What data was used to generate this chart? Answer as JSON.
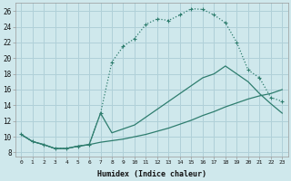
{
  "bg_color": "#cfe8ec",
  "grid_color": "#b0d0d8",
  "line_color": "#2e7d6e",
  "xlabel": "Humidex (Indice chaleur)",
  "xlim": [
    -0.5,
    23.5
  ],
  "ylim": [
    7.5,
    27.0
  ],
  "yticks": [
    8,
    10,
    12,
    14,
    16,
    18,
    20,
    22,
    24,
    26
  ],
  "xticks": [
    0,
    1,
    2,
    3,
    4,
    5,
    6,
    7,
    8,
    9,
    10,
    11,
    12,
    13,
    14,
    15,
    16,
    17,
    18,
    19,
    20,
    21,
    22,
    23
  ],
  "line1_x": [
    0,
    1,
    2,
    3,
    4,
    5,
    6,
    7,
    8,
    9,
    10,
    11,
    12,
    13,
    14,
    15,
    16,
    17,
    18,
    19,
    20,
    21,
    22,
    23
  ],
  "line1_y": [
    10.3,
    9.4,
    9.0,
    8.5,
    8.5,
    8.8,
    9.0,
    13.0,
    19.5,
    21.5,
    22.5,
    24.3,
    25.0,
    24.8,
    25.5,
    26.3,
    26.2,
    25.5,
    24.5,
    22.0,
    18.5,
    17.5,
    15.0,
    14.5
  ],
  "line2_x": [
    0,
    1,
    2,
    3,
    4,
    5,
    6,
    7,
    8,
    9,
    10,
    11,
    12,
    13,
    14,
    15,
    16,
    17,
    18,
    19,
    20,
    21,
    22,
    23
  ],
  "line2_y": [
    10.3,
    9.4,
    9.0,
    8.5,
    8.5,
    8.8,
    9.0,
    9.3,
    9.5,
    9.7,
    10.0,
    10.3,
    10.7,
    11.1,
    11.6,
    12.1,
    12.7,
    13.2,
    13.8,
    14.3,
    14.8,
    15.2,
    15.5,
    16.0
  ],
  "line3_x": [
    0,
    1,
    2,
    3,
    4,
    5,
    6,
    7,
    8,
    9,
    10,
    11,
    12,
    13,
    14,
    15,
    16,
    17,
    18,
    19,
    20,
    21,
    22,
    23
  ],
  "line3_y": [
    10.3,
    9.4,
    9.0,
    8.5,
    8.5,
    8.8,
    9.0,
    13.0,
    10.5,
    11.0,
    11.5,
    12.5,
    13.5,
    14.5,
    15.5,
    16.5,
    17.5,
    18.0,
    19.0,
    18.0,
    17.0,
    15.5,
    14.2,
    13.0
  ]
}
